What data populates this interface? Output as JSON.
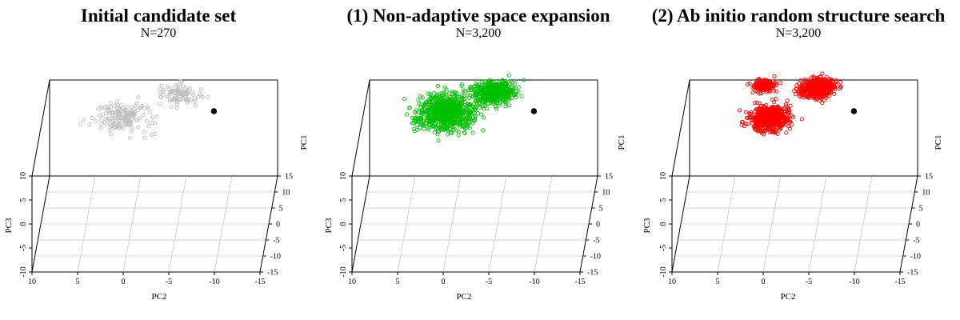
{
  "chart_data": [
    {
      "type": "scatter",
      "title": "Initial candidate set",
      "subtitle": "N=270",
      "xlabel": "PC2",
      "ylabel": "PC3",
      "zlabel": "PC1",
      "x_ticks": [
        "10",
        "5",
        "0",
        "-5",
        "-10",
        "-15"
      ],
      "y_ticks": [
        "10",
        "5",
        "0",
        "-5",
        "-10"
      ],
      "z_ticks": [
        "15",
        "10",
        "5",
        "0",
        "-5",
        "-10",
        "-15"
      ],
      "color": "#bebebe",
      "marker": "open-circle",
      "count": 270,
      "clusters": [
        {
          "pc2": 1.5,
          "pc1": 5.5,
          "pc3": 8.5,
          "spread": [
            3.0,
            4.0,
            1.5
          ],
          "weight": 0.65
        },
        {
          "pc2": -4.5,
          "pc1": 8.5,
          "pc3": 11.5,
          "spread": [
            2.2,
            3.0,
            1.0
          ],
          "weight": 0.35
        }
      ],
      "reference_point": {
        "pc2": -8.5,
        "pc1": 7.5,
        "pc3": 8.5,
        "color": "#000000"
      }
    },
    {
      "type": "scatter",
      "title": "(1) Non-adaptive space expansion",
      "subtitle": "N=3,200",
      "xlabel": "PC2",
      "ylabel": "PC3",
      "zlabel": "PC1",
      "x_ticks": [
        "10",
        "5",
        "0",
        "-5",
        "-10",
        "-15"
      ],
      "y_ticks": [
        "10",
        "5",
        "0",
        "-5",
        "-10"
      ],
      "z_ticks": [
        "15",
        "10",
        "5",
        "0",
        "-5",
        "-10",
        "-15"
      ],
      "color": "#00c000",
      "marker": "open-circle",
      "count": 3200,
      "clusters": [
        {
          "pc2": 1.0,
          "pc1": 5.5,
          "pc3": 9.5,
          "spread": [
            3.0,
            4.5,
            2.2
          ],
          "weight": 0.62
        },
        {
          "pc2": -4.0,
          "pc1": 9.0,
          "pc3": 11.5,
          "spread": [
            2.2,
            3.0,
            1.2
          ],
          "weight": 0.38
        }
      ],
      "reference_point": {
        "pc2": -8.5,
        "pc1": 7.5,
        "pc3": 8.5,
        "color": "#000000"
      }
    },
    {
      "type": "scatter",
      "title": "(2) Ab initio random structure search",
      "subtitle": "N=3,200",
      "xlabel": "PC2",
      "ylabel": "PC3",
      "zlabel": "PC1",
      "x_ticks": [
        "10",
        "5",
        "0",
        "-5",
        "-10",
        "-15"
      ],
      "y_ticks": [
        "10",
        "5",
        "0",
        "-5",
        "-10"
      ],
      "z_ticks": [
        "15",
        "10",
        "5",
        "0",
        "-5",
        "-10",
        "-15"
      ],
      "color": "#ff0000",
      "marker": "open-circle",
      "count": 3200,
      "clusters": [
        {
          "pc2": 0.5,
          "pc1": 4.5,
          "pc3": 9.0,
          "spread": [
            2.0,
            3.0,
            1.6
          ],
          "weight": 0.45
        },
        {
          "pc2": 1.5,
          "pc1": 9.5,
          "pc3": 12.5,
          "spread": [
            1.2,
            1.5,
            0.8
          ],
          "weight": 0.15
        },
        {
          "pc2": -4.5,
          "pc1": 9.5,
          "pc3": 12.0,
          "spread": [
            1.8,
            2.5,
            1.0
          ],
          "weight": 0.4
        }
      ],
      "reference_point": {
        "pc2": -8.5,
        "pc1": 7.5,
        "pc3": 8.5,
        "color": "#000000"
      }
    }
  ]
}
